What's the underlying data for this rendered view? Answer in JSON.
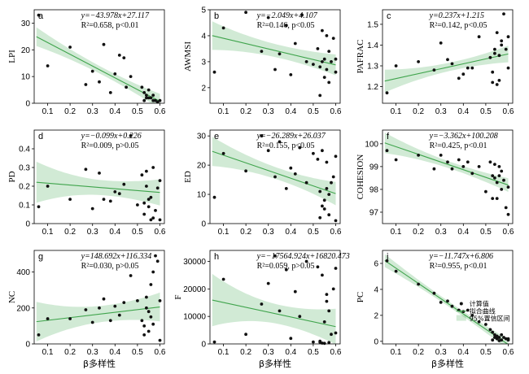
{
  "chart_data": [
    {
      "panel": "a",
      "type": "scatter",
      "ylabel": "LPI",
      "xlabel": "",
      "xlim": [
        0.04,
        0.62
      ],
      "ylim": [
        0,
        35
      ],
      "yticks": [
        0,
        10,
        20,
        30
      ],
      "equation": "y=−43.978x+27.117",
      "stats": "R²=0.658, p<0.01",
      "fit": {
        "slope": -43.978,
        "intercept": 27.117
      },
      "ci_halfwidth": [
        3.5,
        1.4,
        2.8
      ],
      "points": [
        [
          0.06,
          33
        ],
        [
          0.1,
          14
        ],
        [
          0.2,
          21
        ],
        [
          0.27,
          7
        ],
        [
          0.3,
          12
        ],
        [
          0.33,
          8
        ],
        [
          0.35,
          22
        ],
        [
          0.38,
          4
        ],
        [
          0.4,
          11
        ],
        [
          0.42,
          18
        ],
        [
          0.44,
          17
        ],
        [
          0.45,
          6
        ],
        [
          0.47,
          10
        ],
        [
          0.52,
          6
        ],
        [
          0.53,
          4
        ],
        [
          0.54,
          3
        ],
        [
          0.55,
          5
        ],
        [
          0.56,
          2
        ],
        [
          0.57,
          1
        ],
        [
          0.55,
          2
        ],
        [
          0.58,
          1
        ],
        [
          0.6,
          1
        ],
        [
          0.59,
          0.5
        ],
        [
          0.57,
          3
        ],
        [
          0.53,
          1
        ],
        [
          0.54,
          2
        ]
      ]
    },
    {
      "panel": "b",
      "type": "scatter",
      "ylabel": "AWMSI",
      "xlabel": "",
      "xlim": [
        0.04,
        0.62
      ],
      "ylim": [
        1.4,
        5.0
      ],
      "yticks": [
        2,
        3,
        4,
        5
      ],
      "equation": "y=−2.049x+4.107",
      "stats": "R²=0.146, p<0.05",
      "fit": {
        "slope": -2.049,
        "intercept": 4.107
      },
      "ci_halfwidth": [
        0.55,
        0.25,
        0.4
      ],
      "points": [
        [
          0.06,
          2.6
        ],
        [
          0.1,
          4.3
        ],
        [
          0.2,
          4.9
        ],
        [
          0.27,
          3.4
        ],
        [
          0.3,
          4.7
        ],
        [
          0.33,
          2.7
        ],
        [
          0.35,
          3.3
        ],
        [
          0.38,
          4.4
        ],
        [
          0.4,
          2.5
        ],
        [
          0.42,
          3.7
        ],
        [
          0.45,
          4.8
        ],
        [
          0.47,
          3.0
        ],
        [
          0.5,
          2.9
        ],
        [
          0.52,
          3.5
        ],
        [
          0.53,
          2.8
        ],
        [
          0.54,
          4.2
        ],
        [
          0.55,
          3.1
        ],
        [
          0.56,
          2.7
        ],
        [
          0.57,
          3.4
        ],
        [
          0.55,
          2.4
        ],
        [
          0.58,
          3.0
        ],
        [
          0.6,
          2.6
        ],
        [
          0.59,
          3.9
        ],
        [
          0.57,
          2.2
        ],
        [
          0.53,
          1.7
        ],
        [
          0.54,
          3.0
        ],
        [
          0.56,
          4.0
        ],
        [
          0.6,
          3.1
        ]
      ]
    },
    {
      "panel": "c",
      "type": "scatter",
      "ylabel": "PAFRAC",
      "xlabel": "",
      "xlim": [
        0.04,
        0.62
      ],
      "ylim": [
        1.12,
        1.57
      ],
      "yticks": [
        1.2,
        1.3,
        1.4,
        1.5
      ],
      "equation": "y=0.237x+1.215",
      "stats": "R²=0.142, p<0.05",
      "fit": {
        "slope": 0.237,
        "intercept": 1.215
      },
      "ci_halfwidth": [
        0.055,
        0.02,
        0.04
      ],
      "points": [
        [
          0.06,
          1.17
        ],
        [
          0.1,
          1.3
        ],
        [
          0.2,
          1.32
        ],
        [
          0.27,
          1.28
        ],
        [
          0.3,
          1.41
        ],
        [
          0.33,
          1.33
        ],
        [
          0.35,
          1.31
        ],
        [
          0.38,
          1.24
        ],
        [
          0.4,
          1.26
        ],
        [
          0.42,
          1.29
        ],
        [
          0.44,
          1.29
        ],
        [
          0.47,
          1.44
        ],
        [
          0.52,
          1.34
        ],
        [
          0.53,
          1.22
        ],
        [
          0.54,
          1.38
        ],
        [
          0.55,
          1.46
        ],
        [
          0.56,
          1.35
        ],
        [
          0.57,
          1.4
        ],
        [
          0.55,
          1.21
        ],
        [
          0.58,
          1.55
        ],
        [
          0.6,
          1.44
        ],
        [
          0.59,
          1.38
        ],
        [
          0.57,
          1.42
        ],
        [
          0.53,
          1.27
        ],
        [
          0.54,
          1.36
        ],
        [
          0.56,
          1.23
        ],
        [
          0.6,
          1.29
        ]
      ]
    },
    {
      "panel": "d",
      "type": "scatter",
      "ylabel": "PD",
      "xlabel": "",
      "xlim": [
        0.04,
        0.62
      ],
      "ylim": [
        0,
        0.5
      ],
      "yticks": [
        0,
        0.1,
        0.2,
        0.3,
        0.4
      ],
      "equation": "y=−0.099x+0.226",
      "stats": "R²=0.009, p>0.05",
      "fit": {
        "slope": -0.099,
        "intercept": 0.226
      },
      "ci_halfwidth": [
        0.11,
        0.04,
        0.07
      ],
      "points": [
        [
          0.06,
          0.09
        ],
        [
          0.1,
          0.2
        ],
        [
          0.2,
          0.13
        ],
        [
          0.27,
          0.29
        ],
        [
          0.3,
          0.08
        ],
        [
          0.33,
          0.27
        ],
        [
          0.35,
          0.13
        ],
        [
          0.38,
          0.12
        ],
        [
          0.4,
          0.17
        ],
        [
          0.42,
          0.16
        ],
        [
          0.44,
          0.21
        ],
        [
          0.47,
          0.47
        ],
        [
          0.5,
          0.1
        ],
        [
          0.52,
          0.26
        ],
        [
          0.53,
          0.05
        ],
        [
          0.54,
          0.2
        ],
        [
          0.55,
          0.09
        ],
        [
          0.56,
          0.02
        ],
        [
          0.57,
          0.3
        ],
        [
          0.55,
          0.13
        ],
        [
          0.58,
          0.07
        ],
        [
          0.6,
          0.23
        ],
        [
          0.59,
          0.19
        ],
        [
          0.57,
          0.03
        ],
        [
          0.53,
          0.11
        ],
        [
          0.54,
          0.28
        ],
        [
          0.56,
          0.14
        ],
        [
          0.6,
          0.02
        ]
      ]
    },
    {
      "panel": "e",
      "type": "scatter",
      "ylabel": "ED",
      "xlabel": "",
      "xlim": [
        0.04,
        0.62
      ],
      "ylim": [
        0,
        32
      ],
      "yticks": [
        0,
        10,
        20,
        30
      ],
      "equation": "y=−26.289x+26.037",
      "stats": "R²=0.155, p<0.05",
      "fit": {
        "slope": -26.289,
        "intercept": 26.037
      },
      "ci_halfwidth": [
        5,
        2,
        4
      ],
      "points": [
        [
          0.06,
          9
        ],
        [
          0.1,
          24
        ],
        [
          0.2,
          18
        ],
        [
          0.27,
          30
        ],
        [
          0.3,
          25
        ],
        [
          0.33,
          16
        ],
        [
          0.35,
          28
        ],
        [
          0.38,
          12
        ],
        [
          0.4,
          19
        ],
        [
          0.42,
          17
        ],
        [
          0.44,
          26
        ],
        [
          0.47,
          14
        ],
        [
          0.5,
          24
        ],
        [
          0.52,
          22
        ],
        [
          0.53,
          11
        ],
        [
          0.54,
          25
        ],
        [
          0.55,
          8
        ],
        [
          0.56,
          21
        ],
        [
          0.57,
          3
        ],
        [
          0.55,
          5
        ],
        [
          0.58,
          14
        ],
        [
          0.6,
          1
        ],
        [
          0.59,
          16
        ],
        [
          0.57,
          10
        ],
        [
          0.53,
          2
        ],
        [
          0.54,
          6
        ],
        [
          0.56,
          12
        ],
        [
          0.6,
          23
        ]
      ]
    },
    {
      "panel": "f",
      "type": "scatter",
      "ylabel": "COHESION",
      "xlabel": "",
      "xlim": [
        0.04,
        0.62
      ],
      "ylim": [
        96.5,
        100.6
      ],
      "yticks": [
        97,
        98,
        99,
        100
      ],
      "equation": "y=−3.362x+100.208",
      "stats": "R²=0.425, p<0.01",
      "fit": {
        "slope": -3.362,
        "intercept": 100.208
      },
      "ci_halfwidth": [
        0.45,
        0.15,
        0.3
      ],
      "points": [
        [
          0.06,
          99.7
        ],
        [
          0.1,
          99.3
        ],
        [
          0.2,
          99.5
        ],
        [
          0.27,
          98.9
        ],
        [
          0.3,
          99.5
        ],
        [
          0.33,
          99.2
        ],
        [
          0.35,
          98.9
        ],
        [
          0.38,
          99.3
        ],
        [
          0.4,
          99.0
        ],
        [
          0.42,
          99.2
        ],
        [
          0.44,
          98.7
        ],
        [
          0.47,
          99.0
        ],
        [
          0.5,
          97.9
        ],
        [
          0.52,
          99.2
        ],
        [
          0.53,
          98.6
        ],
        [
          0.54,
          99.1
        ],
        [
          0.55,
          98.3
        ],
        [
          0.56,
          98.6
        ],
        [
          0.57,
          98.0
        ],
        [
          0.55,
          97.6
        ],
        [
          0.58,
          98.4
        ],
        [
          0.6,
          98.1
        ],
        [
          0.59,
          97.2
        ],
        [
          0.57,
          98.8
        ],
        [
          0.53,
          97.6
        ],
        [
          0.54,
          98.5
        ],
        [
          0.56,
          99.0
        ],
        [
          0.6,
          96.9
        ]
      ]
    },
    {
      "panel": "g",
      "type": "scatter",
      "ylabel": "NC",
      "xlabel": "β多样性",
      "xlim": [
        0.04,
        0.62
      ],
      "ylim": [
        0,
        520
      ],
      "yticks": [
        0,
        200,
        400
      ],
      "equation": "y=148.692x+116.334",
      "stats": "R²=0.030, p>0.05",
      "fit": {
        "slope": 148.692,
        "intercept": 116.334
      },
      "ci_halfwidth": [
        110,
        45,
        80
      ],
      "points": [
        [
          0.06,
          50
        ],
        [
          0.1,
          140
        ],
        [
          0.2,
          140
        ],
        [
          0.27,
          190
        ],
        [
          0.3,
          120
        ],
        [
          0.33,
          200
        ],
        [
          0.35,
          250
        ],
        [
          0.38,
          130
        ],
        [
          0.4,
          210
        ],
        [
          0.42,
          160
        ],
        [
          0.44,
          230
        ],
        [
          0.47,
          380
        ],
        [
          0.5,
          240
        ],
        [
          0.52,
          130
        ],
        [
          0.53,
          100
        ],
        [
          0.54,
          200
        ],
        [
          0.55,
          70
        ],
        [
          0.56,
          150
        ],
        [
          0.57,
          400
        ],
        [
          0.55,
          180
        ],
        [
          0.58,
          490
        ],
        [
          0.6,
          240
        ],
        [
          0.59,
          460
        ],
        [
          0.57,
          110
        ],
        [
          0.53,
          50
        ],
        [
          0.54,
          260
        ],
        [
          0.56,
          330
        ],
        [
          0.6,
          20
        ]
      ]
    },
    {
      "panel": "h",
      "type": "scatter",
      "ylabel": "F",
      "xlabel": "β多样性",
      "xlim": [
        0.04,
        0.62
      ],
      "ylim": [
        0,
        34000
      ],
      "yticks": [
        0,
        10000,
        20000,
        30000
      ],
      "equation": "y=−17564.924x+16820.473",
      "stats": "R²=0.059, p>0.05",
      "fit": {
        "slope": -17564.924,
        "intercept": 16820.473
      },
      "ci_halfwidth": [
        9500,
        3500,
        6500
      ],
      "points": [
        [
          0.06,
          700
        ],
        [
          0.1,
          23500
        ],
        [
          0.2,
          3500
        ],
        [
          0.27,
          14500
        ],
        [
          0.3,
          22000
        ],
        [
          0.33,
          32000
        ],
        [
          0.35,
          12000
        ],
        [
          0.38,
          27000
        ],
        [
          0.4,
          2000
        ],
        [
          0.42,
          19000
        ],
        [
          0.44,
          10000
        ],
        [
          0.47,
          30000
        ],
        [
          0.5,
          700
        ],
        [
          0.52,
          28000
        ],
        [
          0.53,
          1000
        ],
        [
          0.54,
          25000
        ],
        [
          0.55,
          200
        ],
        [
          0.56,
          18000
        ],
        [
          0.57,
          500
        ],
        [
          0.55,
          8000
        ],
        [
          0.58,
          3500
        ],
        [
          0.6,
          27500
        ],
        [
          0.59,
          20000
        ],
        [
          0.57,
          12000
        ],
        [
          0.53,
          600
        ],
        [
          0.54,
          300
        ],
        [
          0.56,
          15500
        ],
        [
          0.6,
          4000
        ]
      ]
    },
    {
      "panel": "i",
      "type": "scatter",
      "ylabel": "PC",
      "xlabel": "β多样性",
      "xlim": [
        0.04,
        0.62
      ],
      "ylim": [
        -0.2,
        7
      ],
      "yticks": [
        0,
        2,
        4,
        6
      ],
      "equation": "y=−11.747x+6.806",
      "stats": "R²=0.955, p<0.01",
      "fit": {
        "slope": -11.747,
        "intercept": 6.806
      },
      "ci_halfwidth": [
        0.5,
        0.2,
        0.4
      ],
      "legend": [
        "计算值",
        "拟合曲线",
        "95%置信区间"
      ],
      "points": [
        [
          0.06,
          6.2
        ],
        [
          0.1,
          5.4
        ],
        [
          0.2,
          4.4
        ],
        [
          0.27,
          3.7
        ],
        [
          0.3,
          3.0
        ],
        [
          0.33,
          3.1
        ],
        [
          0.35,
          2.7
        ],
        [
          0.38,
          2.4
        ],
        [
          0.4,
          2.3
        ],
        [
          0.42,
          2.4
        ],
        [
          0.44,
          2.0
        ],
        [
          0.47,
          1.5
        ],
        [
          0.5,
          1.3
        ],
        [
          0.52,
          0.9
        ],
        [
          0.53,
          0.7
        ],
        [
          0.54,
          0.5
        ],
        [
          0.55,
          0.4
        ],
        [
          0.56,
          0.3
        ],
        [
          0.57,
          0.1
        ],
        [
          0.55,
          0.2
        ],
        [
          0.58,
          0.3
        ],
        [
          0.6,
          0.1
        ],
        [
          0.59,
          0.2
        ],
        [
          0.57,
          0.5
        ],
        [
          0.53,
          0.1
        ],
        [
          0.54,
          0.3
        ],
        [
          0.56,
          0.05
        ],
        [
          0.6,
          0.2
        ]
      ]
    }
  ],
  "shared": {
    "xticks": [
      0.1,
      0.2,
      0.3,
      0.4,
      0.5,
      0.6
    ],
    "colors": {
      "fit": "#3fa44c",
      "ci": "#2e9e3e",
      "points": "#111111"
    }
  }
}
